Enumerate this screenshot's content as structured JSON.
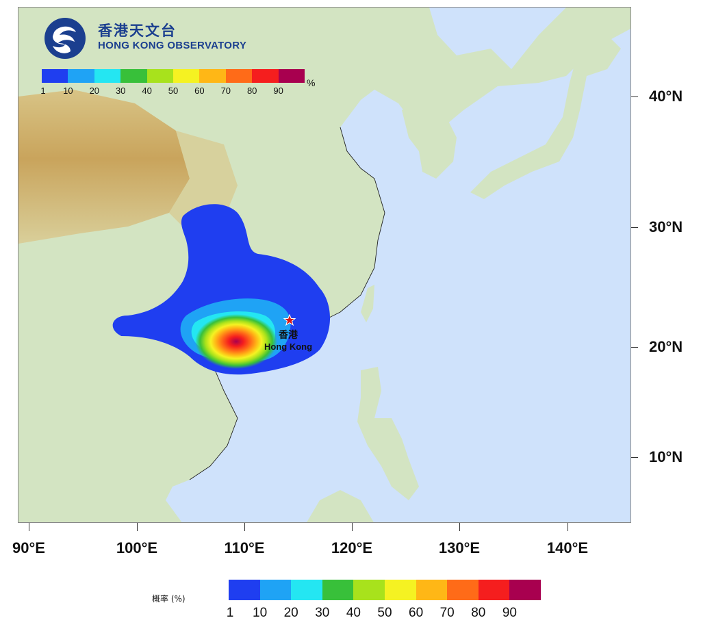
{
  "logo": {
    "name_zh": "香港天文台",
    "name_en": "HONG KONG OBSERVATORY",
    "color": "#1b3f8f"
  },
  "map": {
    "lat_labels": [
      "40°N",
      "30°N",
      "20°N",
      "10°N"
    ],
    "lon_labels": [
      "90°E",
      "100°E",
      "110°E",
      "120°E",
      "130°E",
      "140°E"
    ],
    "city": {
      "name_zh": "香港",
      "name_en": "Hong Kong",
      "marker": "red-star-icon"
    },
    "colors": {
      "sea": "#cfe2fb",
      "land_low": "#cfe3c0",
      "land_high": "#c9a258",
      "coast": "#222222"
    }
  },
  "probability_scale": {
    "unit": "%",
    "title": "概率 (%)",
    "ticks": [
      "1",
      "10",
      "20",
      "30",
      "40",
      "50",
      "60",
      "70",
      "80",
      "90"
    ],
    "colors": [
      "#1f3ef0",
      "#1fa3f5",
      "#24e6f2",
      "#38c03a",
      "#a8e21c",
      "#f5f222",
      "#ffb716",
      "#ff6b18",
      "#f51e1e",
      "#a8004f"
    ]
  }
}
